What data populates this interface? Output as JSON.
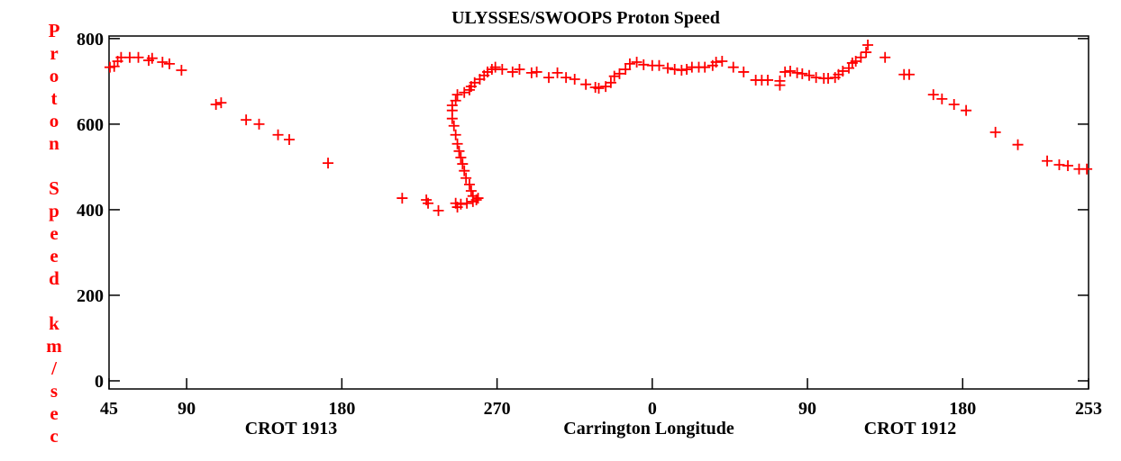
{
  "chart_data": {
    "type": "scatter",
    "title": "ULYSSES/SWOOPS Proton Speed",
    "y_label": "Proton Speed km/sec",
    "x_label": "Carrington Longitude",
    "annotations": [
      "CROT 1913",
      "CROT 1912"
    ],
    "color": "#ff0000",
    "xlim": [
      45,
      613
    ],
    "ylim": [
      -19,
      806
    ],
    "xticks": [
      45,
      90,
      180,
      270,
      {
        "value": 360,
        "label": "0"
      },
      {
        "value": 450,
        "label": "90"
      },
      {
        "value": 540,
        "label": "180"
      },
      {
        "value": 613,
        "label": "253"
      }
    ],
    "yticks": [
      0,
      200,
      400,
      600,
      800
    ],
    "series": [
      {
        "name": "Proton Speed",
        "color": "#ff0000",
        "x": [
          45.5,
          48,
          50,
          52,
          57,
          62,
          68,
          70,
          76,
          80,
          87,
          107,
          110,
          124.5,
          132,
          143,
          149.5,
          172,
          215,
          229,
          230,
          236,
          244,
          244,
          244,
          245,
          246,
          247,
          248,
          249,
          250,
          251,
          252,
          254,
          255,
          256,
          258,
          259,
          246,
          247,
          249,
          252.5,
          256,
          246,
          247,
          251,
          254,
          255,
          257,
          260,
          262.5,
          264.5,
          267,
          269,
          273,
          279,
          283,
          290,
          293,
          300,
          305,
          310,
          315,
          321.5,
          327,
          329,
          333,
          336,
          338,
          341,
          344.5,
          347,
          351,
          355,
          360,
          364,
          369,
          373,
          377,
          380,
          383,
          387,
          390.5,
          395,
          397,
          400.5,
          407,
          413,
          420,
          423.5,
          427,
          434,
          434,
          437,
          440,
          444,
          447,
          451,
          455,
          459.5,
          462,
          466,
          468,
          470.5,
          474,
          476,
          478,
          481,
          484,
          485,
          495,
          506,
          509,
          523,
          528,
          535,
          542,
          559,
          572,
          589,
          596,
          601,
          607.5,
          612
        ],
        "values": [
          733,
          735,
          747,
          756,
          756,
          756,
          749,
          754,
          745,
          741,
          726,
          646,
          650,
          610,
          600,
          575,
          564,
          509,
          427,
          423,
          415,
          398,
          644,
          632,
          613,
          596,
          575,
          554,
          537,
          522,
          507,
          491,
          474,
          459,
          444,
          432,
          423,
          427,
          415,
          406,
          413,
          415,
          419,
          655,
          669,
          674,
          680,
          688,
          697,
          705,
          714,
          722,
          728,
          733,
          728,
          722,
          728,
          720,
          722,
          709,
          720,
          709,
          705,
          693,
          686,
          684,
          688,
          697,
          712,
          718,
          728,
          741,
          745,
          739,
          737,
          737,
          731,
          728,
          726,
          728,
          733,
          733,
          733,
          737,
          745,
          747,
          733,
          722,
          703,
          703,
          703,
          691,
          701,
          722,
          724,
          720,
          718,
          714,
          709,
          707,
          707,
          709,
          716,
          724,
          731,
          743,
          747,
          756,
          768,
          785,
          756,
          716,
          716,
          669,
          659,
          646,
          632,
          581,
          552,
          514,
          505,
          503,
          495,
          495
        ]
      }
    ]
  }
}
